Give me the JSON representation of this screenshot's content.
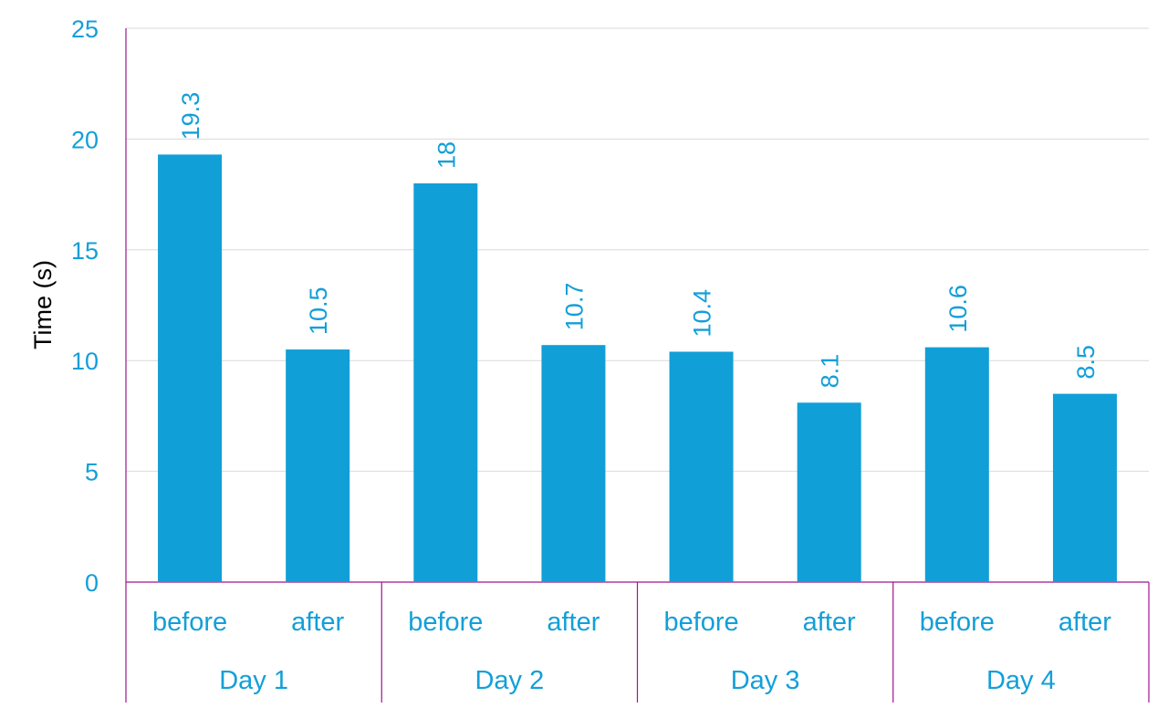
{
  "chart_data": {
    "type": "bar",
    "ylabel": "Time (s)",
    "ylim": [
      0,
      25
    ],
    "yticks": [
      0,
      5,
      10,
      15,
      20,
      25
    ],
    "grid": true,
    "bar_color": "#119fd7",
    "categories": [
      "before",
      "after",
      "before",
      "after",
      "before",
      "after",
      "before",
      "after"
    ],
    "groups": [
      "Day 1",
      "Day 2",
      "Day 3",
      "Day 4"
    ],
    "values": [
      19.3,
      10.5,
      18,
      10.7,
      10.4,
      8.1,
      10.6,
      8.5
    ],
    "data_labels": [
      "19.3",
      "10.5",
      "18",
      "10.7",
      "10.4",
      "8.1",
      "10.6",
      "8.5"
    ]
  }
}
